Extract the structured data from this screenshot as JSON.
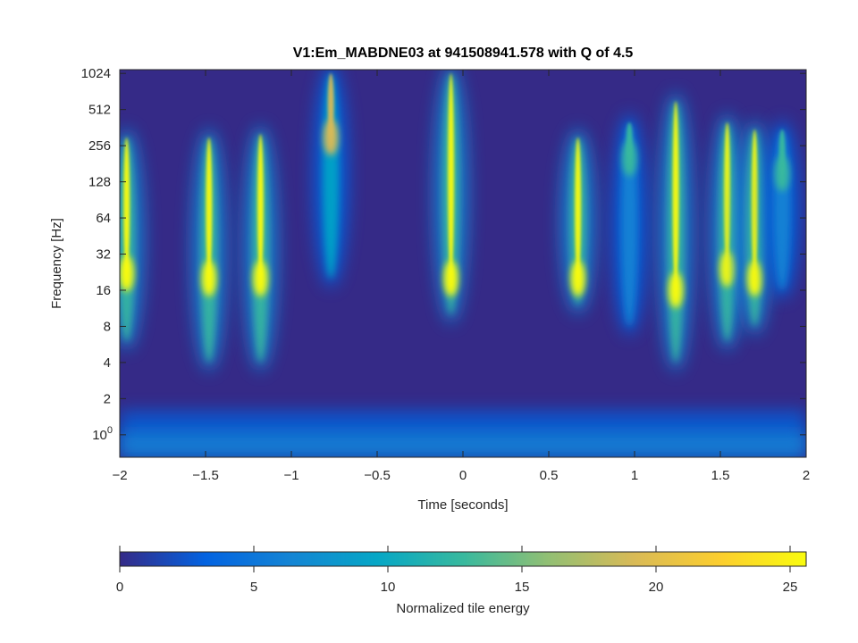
{
  "chart_data": {
    "type": "heatmap",
    "title": "V1:Em_MABDNE03 at 941508941.578 with Q of 4.5",
    "xlabel": "Time [seconds]",
    "ylabel": "Frequency [Hz]",
    "xlim": [
      -2,
      2
    ],
    "ylim": [
      0.65,
      1100
    ],
    "y_scale": "log2",
    "x_ticks": [
      -2,
      -1.5,
      -1,
      -0.5,
      0,
      0.5,
      1,
      1.5,
      2
    ],
    "x_tick_labels": [
      "−2",
      "−1.5",
      "−1",
      "−0.5",
      "0",
      "0.5",
      "1",
      "1.5",
      "2"
    ],
    "y_ticks": [
      1,
      2,
      4,
      8,
      16,
      32,
      64,
      128,
      256,
      512,
      1024
    ],
    "y_tick_labels": [
      "10^0",
      "2",
      "4",
      "8",
      "16",
      "32",
      "64",
      "128",
      "256",
      "512",
      "1024"
    ],
    "colorbar": {
      "label": "Normalized tile energy",
      "range": [
        0,
        25.6
      ],
      "ticks": [
        0,
        5,
        10,
        15,
        20,
        25
      ],
      "tick_labels": [
        "0",
        "5",
        "10",
        "15",
        "20",
        "25"
      ],
      "colormap": [
        "#352a87",
        "#0363e1",
        "#1485d4",
        "#06a7c6",
        "#38b99e",
        "#92bf73",
        "#d9ba56",
        "#fcce2e",
        "#f9fb0e"
      ]
    },
    "background_color": "#352a87",
    "events": [
      {
        "t": -1.96,
        "f_peak": 22,
        "f_low": 6,
        "f_high": 300,
        "energy": 25
      },
      {
        "t": -1.48,
        "f_peak": 20,
        "f_low": 4,
        "f_high": 300,
        "energy": 25
      },
      {
        "t": -1.18,
        "f_peak": 20,
        "f_low": 4,
        "f_high": 320,
        "energy": 24
      },
      {
        "t": -0.77,
        "f_peak": 300,
        "f_low": 20,
        "f_high": 1024,
        "energy": 18
      },
      {
        "t": -0.07,
        "f_peak": 20,
        "f_low": 10,
        "f_high": 1024,
        "energy": 25
      },
      {
        "t": 0.67,
        "f_peak": 20,
        "f_low": 12,
        "f_high": 300,
        "energy": 25
      },
      {
        "t": 0.97,
        "f_peak": 200,
        "f_low": 8,
        "f_high": 400,
        "energy": 14
      },
      {
        "t": 1.24,
        "f_peak": 16,
        "f_low": 4,
        "f_high": 600,
        "energy": 25
      },
      {
        "t": 1.54,
        "f_peak": 24,
        "f_low": 6,
        "f_high": 400,
        "energy": 25
      },
      {
        "t": 1.7,
        "f_peak": 20,
        "f_low": 8,
        "f_high": 350,
        "energy": 25
      },
      {
        "t": 1.86,
        "f_peak": 150,
        "f_low": 16,
        "f_high": 350,
        "energy": 12
      }
    ]
  }
}
